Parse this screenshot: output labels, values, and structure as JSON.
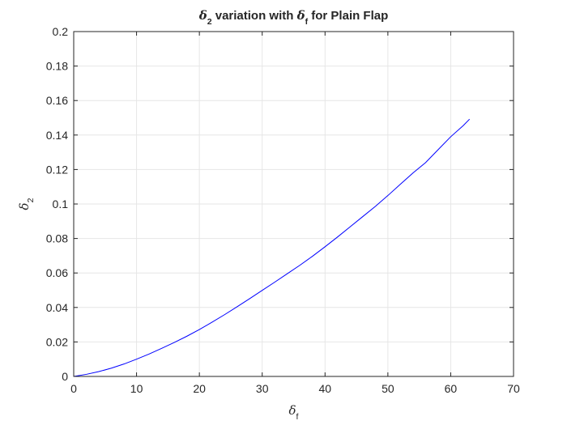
{
  "chart_data": {
    "type": "line",
    "title": {
      "parts": [
        {
          "text": "δ",
          "style": "greek"
        },
        {
          "text": "2",
          "style": "sub"
        },
        {
          "text": " variation with ",
          "style": "normal"
        },
        {
          "text": "δ",
          "style": "greek"
        },
        {
          "text": "f",
          "style": "sub"
        },
        {
          "text": " for Plain Flap",
          "style": "normal"
        }
      ]
    },
    "xlabel": {
      "parts": [
        {
          "text": "δ",
          "style": "greek"
        },
        {
          "text": "f",
          "style": "sub"
        }
      ]
    },
    "ylabel": {
      "parts": [
        {
          "text": "δ",
          "style": "greek"
        },
        {
          "text": "2",
          "style": "sub"
        }
      ]
    },
    "xlim": [
      0,
      70
    ],
    "ylim": [
      0,
      0.2
    ],
    "xticks": [
      0,
      10,
      20,
      30,
      40,
      50,
      60,
      70
    ],
    "xtick_labels": [
      "0",
      "10",
      "20",
      "30",
      "40",
      "50",
      "60",
      "70"
    ],
    "yticks": [
      0,
      0.02,
      0.04,
      0.06,
      0.08,
      0.1,
      0.12,
      0.14,
      0.16,
      0.18,
      0.2
    ],
    "ytick_labels": [
      "0",
      "0.02",
      "0.04",
      "0.06",
      "0.08",
      "0.1",
      "0.12",
      "0.14",
      "0.16",
      "0.18",
      "0.2"
    ],
    "grid": true,
    "box": true,
    "colors": {
      "line": "#0000ff",
      "grid": "#e6e6e6",
      "axes": "#262626"
    },
    "series": [
      {
        "x": [
          0,
          2,
          4,
          6,
          8,
          10,
          12,
          14,
          16,
          18,
          20,
          22,
          24,
          26,
          28,
          30,
          32,
          34,
          36,
          38,
          40,
          42,
          44,
          46,
          48,
          50,
          52,
          54,
          56,
          58,
          60,
          62,
          63
        ],
        "y": [
          0,
          0.0012,
          0.0028,
          0.0048,
          0.0072,
          0.01,
          0.013,
          0.0163,
          0.0197,
          0.0233,
          0.0272,
          0.0314,
          0.0358,
          0.0404,
          0.0451,
          0.0499,
          0.0547,
          0.0596,
          0.0645,
          0.0697,
          0.0752,
          0.0809,
          0.0868,
          0.0927,
          0.0986,
          0.1049,
          0.1115,
          0.118,
          0.124,
          0.1315,
          0.139,
          0.1455,
          0.1492
        ]
      }
    ]
  }
}
